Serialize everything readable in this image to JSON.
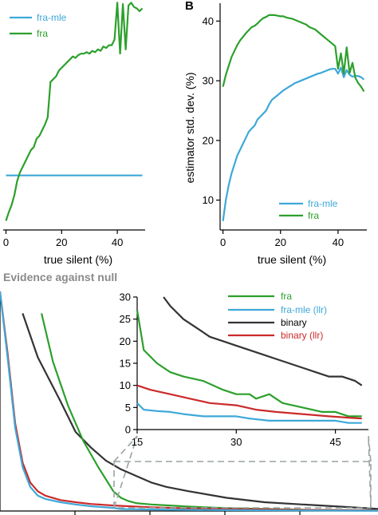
{
  "panel_b_letter": "B",
  "section_title": "Evidence against null",
  "chart_data": [
    {
      "id": "panel-a",
      "type": "line",
      "xlabel": "true silent (%)",
      "ylabel": "",
      "xlim": [
        -1,
        50
      ],
      "ylim": [
        27,
        42
      ],
      "xticks": [
        0,
        20,
        40
      ],
      "legend": "top-left",
      "series": [
        {
          "name": "fra-mle",
          "color": "#3ea8d8",
          "x": [
            0,
            49
          ],
          "y": [
            30.4,
            30.4
          ]
        },
        {
          "name": "fra",
          "color": "#2ca02c",
          "x": [
            0,
            1,
            2,
            3,
            4,
            5,
            6,
            7,
            8,
            9,
            10,
            11,
            12,
            13,
            14,
            15,
            16,
            17,
            18,
            19,
            20,
            21,
            22,
            23,
            24,
            25,
            26,
            27,
            28,
            29,
            30,
            31,
            32,
            33,
            34,
            35,
            36,
            37,
            38,
            39,
            40,
            41,
            42,
            43,
            44,
            45,
            46,
            47,
            48,
            49
          ],
          "y": [
            27.2,
            27.8,
            28.3,
            29.0,
            30.0,
            30.6,
            31.0,
            31.4,
            31.8,
            32.2,
            32.4,
            33.0,
            33.2,
            33.6,
            34.0,
            34.5,
            37.0,
            37.2,
            37.4,
            37.8,
            38.0,
            38.2,
            38.4,
            38.6,
            38.8,
            38.7,
            38.9,
            39.0,
            39.0,
            39.1,
            39.0,
            39.2,
            39.1,
            39.3,
            39.2,
            39.5,
            39.4,
            39.6,
            39.6,
            40.0,
            42.6,
            39.0,
            42.5,
            39.3,
            42.4,
            42.6,
            42.3,
            42.2,
            42.0,
            42.2
          ]
        }
      ]
    },
    {
      "id": "panel-b",
      "type": "line",
      "xlabel": "true silent (%)",
      "ylabel": "estimator std. dev. (%)",
      "xlim": [
        -1,
        50
      ],
      "ylim": [
        5,
        43
      ],
      "xticks": [
        0,
        20,
        40
      ],
      "yticks": [
        10,
        20,
        30,
        40
      ],
      "legend": "bottom-right",
      "series": [
        {
          "name": "fra-mle",
          "color": "#3ea8d8",
          "x": [
            0,
            1,
            2,
            3,
            4,
            5,
            6,
            7,
            8,
            9,
            10,
            11,
            12,
            13,
            14,
            15,
            16,
            17,
            18,
            19,
            20,
            21,
            22,
            23,
            24,
            25,
            26,
            27,
            28,
            29,
            30,
            31,
            32,
            33,
            34,
            35,
            36,
            37,
            38,
            39,
            40,
            41,
            42,
            43,
            44,
            45,
            46,
            47,
            48,
            49
          ],
          "y": [
            6.5,
            10.0,
            12.5,
            14.5,
            16.0,
            17.5,
            18.5,
            19.5,
            20.5,
            21.5,
            22.0,
            22.5,
            23.5,
            24.0,
            24.5,
            25.0,
            26.0,
            26.8,
            27.2,
            27.6,
            28.0,
            28.4,
            28.7,
            29.0,
            29.3,
            29.6,
            29.8,
            30.0,
            30.2,
            30.4,
            30.6,
            30.8,
            31.0,
            31.2,
            31.3,
            31.5,
            31.7,
            31.9,
            32.0,
            32.0,
            31.2,
            32.2,
            30.6,
            31.8,
            31.0,
            30.7,
            30.8,
            30.8,
            30.6,
            30.2
          ]
        },
        {
          "name": "fra",
          "color": "#2ca02c",
          "x": [
            0,
            1,
            2,
            3,
            4,
            5,
            6,
            7,
            8,
            9,
            10,
            11,
            12,
            13,
            14,
            15,
            16,
            17,
            18,
            19,
            20,
            21,
            22,
            23,
            24,
            25,
            26,
            27,
            28,
            29,
            30,
            31,
            32,
            33,
            34,
            35,
            36,
            37,
            38,
            39,
            40,
            41,
            42,
            43,
            44,
            45,
            46,
            47,
            48,
            49
          ],
          "y": [
            29.0,
            31.0,
            32.5,
            34.0,
            35.0,
            36.0,
            36.8,
            37.4,
            38.0,
            38.5,
            39.0,
            39.2,
            39.6,
            40.1,
            40.5,
            40.7,
            41.0,
            41.0,
            41.0,
            40.9,
            40.8,
            40.8,
            40.6,
            40.5,
            40.4,
            40.2,
            40.0,
            39.8,
            39.6,
            39.4,
            39.0,
            38.8,
            38.6,
            38.2,
            37.8,
            37.4,
            37.0,
            36.6,
            36.2,
            35.8,
            32.0,
            34.6,
            31.2,
            35.6,
            31.3,
            33.0,
            30.5,
            29.6,
            29.0,
            28.2
          ]
        }
      ]
    },
    {
      "id": "panel-c-main",
      "type": "line",
      "xlabel": "",
      "ylabel": "",
      "xlim": [
        0,
        50
      ],
      "ylim": [
        0,
        100
      ],
      "series": [
        {
          "name": "binary",
          "color": "#333333",
          "x": [
            3,
            5,
            8,
            10,
            12,
            14,
            16,
            18,
            20,
            22,
            25,
            30,
            35,
            40,
            45,
            50
          ],
          "y": [
            90,
            70,
            50,
            36,
            29,
            23,
            19,
            16,
            13,
            11,
            9,
            6,
            4,
            3,
            2,
            1
          ]
        },
        {
          "name": "fra",
          "color": "#2ca02c",
          "x": [
            5.5,
            7,
            9,
            11,
            13,
            15,
            16,
            17,
            18,
            20,
            22,
            25,
            30,
            35,
            40,
            45,
            50
          ],
          "y": [
            90,
            68,
            48,
            32,
            20,
            9,
            6,
            4.5,
            3.6,
            3,
            2.6,
            2,
            1.3,
            0.9,
            0.6,
            0.4,
            0.3
          ]
        },
        {
          "name": "binary (llr)",
          "color": "#cc2a2a",
          "x": [
            0,
            1,
            2,
            3,
            4,
            5,
            6,
            8,
            10,
            12,
            15,
            20,
            25,
            30,
            40,
            50
          ],
          "y": [
            100,
            72,
            40,
            22,
            13,
            9,
            7,
            5,
            4,
            3.2,
            2.5,
            1.7,
            1.2,
            0.9,
            0.5,
            0.3
          ]
        },
        {
          "name": "fra-mle (llr)",
          "color": "#3ea8d8",
          "x": [
            0,
            1,
            2,
            3,
            4,
            5,
            6,
            8,
            10,
            12,
            15,
            16,
            18,
            20,
            25,
            30,
            40,
            50
          ],
          "y": [
            100,
            70,
            38,
            20,
            11,
            7,
            5.5,
            4,
            3,
            2.2,
            1.4,
            0.9,
            0.8,
            0.7,
            0.5,
            0.4,
            0.25,
            0.15
          ]
        }
      ]
    },
    {
      "id": "panel-c-inset",
      "type": "line",
      "xlim": [
        15,
        50
      ],
      "ylim": [
        0,
        30
      ],
      "xticks": [
        15,
        30,
        45
      ],
      "yticks": [
        0,
        5,
        10,
        15,
        20,
        25,
        30
      ],
      "legend": "right",
      "series": [
        {
          "name": "fra",
          "color": "#2ca02c",
          "x": [
            15,
            16,
            18,
            20,
            22,
            25,
            28,
            30,
            32,
            33,
            35,
            37,
            40,
            43,
            45,
            47,
            49
          ],
          "y": [
            27,
            18,
            15,
            13,
            12,
            11,
            9,
            8,
            8,
            7,
            8,
            6,
            5,
            4,
            4,
            3,
            3
          ]
        },
        {
          "name": "fra-mle (llr)",
          "color": "#3ea8d8",
          "x": [
            15,
            16,
            18,
            20,
            22,
            25,
            28,
            30,
            32,
            35,
            38,
            40,
            45,
            47,
            49
          ],
          "y": [
            6,
            4.5,
            4.2,
            4,
            3.5,
            3,
            3,
            3,
            2.5,
            2,
            2,
            2,
            2,
            1.5,
            1.5
          ]
        },
        {
          "name": "binary",
          "color": "#333333",
          "x": [
            19,
            20,
            22,
            24,
            26,
            28,
            30,
            32,
            34,
            36,
            38,
            40,
            42,
            44,
            46,
            48,
            49
          ],
          "y": [
            30,
            28,
            25,
            23,
            21,
            20,
            19,
            18,
            17,
            16,
            15,
            14,
            13,
            12,
            12,
            11,
            10
          ]
        },
        {
          "name": "binary (llr)",
          "color": "#cc2a2a",
          "x": [
            15,
            17,
            20,
            23,
            26,
            30,
            33,
            36,
            40,
            44,
            47,
            49
          ],
          "y": [
            10,
            9,
            8,
            7,
            6,
            5.5,
            4.5,
            4,
            3.5,
            3,
            2.7,
            2.5
          ]
        }
      ]
    }
  ]
}
